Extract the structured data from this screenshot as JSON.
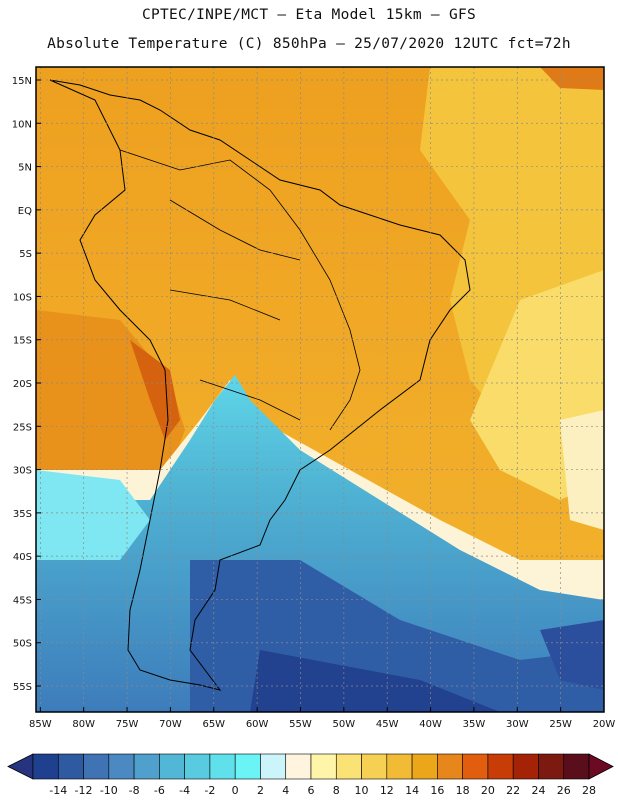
{
  "header": {
    "line1": "CPTEC/INPE/MCT –  Eta Model 15km – GFS",
    "line2": "Absolute Temperature (C) 850hPa – 25/07/2020 12UTC fct=72h"
  },
  "map": {
    "lat_labels": [
      "15N",
      "10N",
      "5N",
      "EQ",
      "5S",
      "10S",
      "15S",
      "20S",
      "25S",
      "30S",
      "35S",
      "40S",
      "45S",
      "50S",
      "55S"
    ],
    "lon_labels": [
      "85W",
      "80W",
      "75W",
      "70W",
      "65W",
      "60W",
      "55W",
      "50W",
      "45W",
      "40W",
      "35W",
      "30W",
      "25W",
      "20W"
    ],
    "lat_values": [
      15,
      10,
      5,
      0,
      -5,
      -10,
      -15,
      -20,
      -25,
      -30,
      -35,
      -40,
      -45,
      -50,
      -55
    ],
    "lon_values": [
      -85,
      -80,
      -75,
      -70,
      -65,
      -60,
      -55,
      -50,
      -45,
      -40,
      -35,
      -30,
      -25,
      -20
    ],
    "extent": {
      "lon_min": -85.5,
      "lon_max": -20,
      "lat_min": -58,
      "lat_max": 16.5
    }
  },
  "colorbar": {
    "labels": [
      "-14",
      "-12",
      "-10",
      "-8",
      "-6",
      "-4",
      "-2",
      "0",
      "2",
      "4",
      "6",
      "8",
      "10",
      "12",
      "14",
      "16",
      "18",
      "20",
      "22",
      "24",
      "26",
      "28"
    ],
    "colors": [
      "#1f3f8f",
      "#2d5aa0",
      "#3f73b4",
      "#4b89c2",
      "#4fa0cc",
      "#52b6d6",
      "#58cbe0",
      "#5fe0ea",
      "#6bf4f6",
      "#ccf4fb",
      "#fff5df",
      "#fff5a8",
      "#fbe274",
      "#f6d053",
      "#f1bb35",
      "#eba61a",
      "#e7861a",
      "#e05e0e",
      "#c83c08",
      "#a42306",
      "#7c1a12",
      "#5a0d1a"
    ],
    "under_color": "#26347f",
    "over_color": "#6d0a23"
  }
}
